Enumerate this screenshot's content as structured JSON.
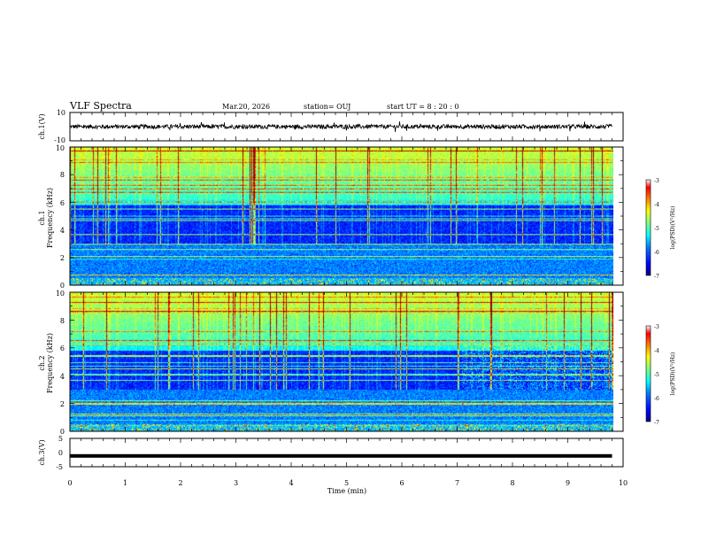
{
  "header": {
    "title": "VLF Spectra",
    "date": "Mar.20, 2026",
    "station": "station= OUJ",
    "start": "start  UT =   8  : 20 : 0"
  },
  "chart_data": [
    {
      "id": "ch1-waveform",
      "type": "line",
      "ylabel": "ch.1(V)",
      "ylim": [
        -10,
        10
      ],
      "ytick_labels": [
        "10",
        "-10"
      ],
      "description_values": {
        "typical_center": 0,
        "typical_amplitude": 1.5
      },
      "color": "#000000"
    },
    {
      "id": "ch1-spectrogram",
      "type": "heatmap",
      "ylabel_line1": "ch.1",
      "ylabel_line2": "Frequency  (kHz)",
      "ylim": [
        0,
        10
      ],
      "ytick_labels": [
        "0",
        "2",
        "4",
        "6",
        "8",
        "10"
      ],
      "colorbar": {
        "label": "log(PSD)(V²/Hz)",
        "range": [
          -7,
          -3
        ],
        "tick_labels": [
          "-3",
          "-4",
          "-5",
          "-6",
          "-7"
        ]
      }
    },
    {
      "id": "ch2-spectrogram",
      "type": "heatmap",
      "ylabel_line1": "ch.2",
      "ylabel_line2": "Frequency  (kHz)",
      "ylim": [
        0,
        10
      ],
      "ytick_labels": [
        "0",
        "2",
        "4",
        "6",
        "8",
        "10"
      ],
      "colorbar": {
        "label": "log(PSD)(V²/Hz)",
        "range": [
          -7,
          -3
        ],
        "tick_labels": [
          "-3",
          "-4",
          "-5",
          "-6",
          "-7"
        ]
      }
    },
    {
      "id": "ch3-waveform",
      "type": "line",
      "ylabel": "ch.3(V)",
      "ylim": [
        -5,
        5
      ],
      "ytick_labels": [
        "5",
        "0",
        "-5"
      ],
      "description_values": {
        "constant_value": -1.2
      },
      "color": "#000000"
    }
  ],
  "xaxis": {
    "label": "Time  (min)",
    "xlim": [
      0,
      10
    ],
    "tick_labels": [
      "0",
      "1",
      "2",
      "3",
      "4",
      "5",
      "6",
      "7",
      "8",
      "9",
      "10"
    ],
    "data_end_min": 9.8
  },
  "colors": {
    "ramp": [
      "#000080",
      "#0000ff",
      "#0080ff",
      "#00ffff",
      "#80ff80",
      "#ffff00",
      "#ff8000",
      "#ff0000",
      "#800000"
    ]
  }
}
